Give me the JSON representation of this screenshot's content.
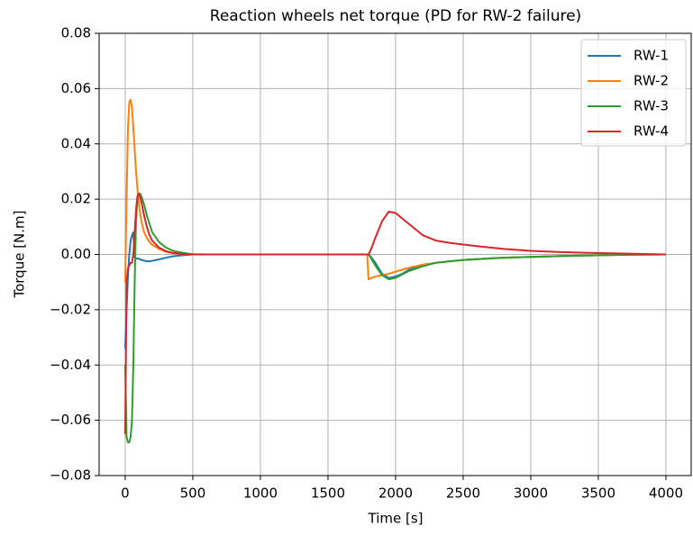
{
  "chart_data": {
    "type": "line",
    "title": "Reaction wheels net torque (PD for RW-2 failure)",
    "x_label": "Time [s]",
    "y_label": "Torque [N.m]",
    "x": [
      0,
      10,
      20,
      30,
      40,
      50,
      60,
      70,
      80,
      90,
      100,
      110,
      120,
      140,
      160,
      180,
      200,
      250,
      300,
      350,
      400,
      450,
      500,
      600,
      800,
      1000,
      1200,
      1400,
      1600,
      1790,
      1800,
      1820,
      1850,
      1900,
      1950,
      2000,
      2050,
      2100,
      2200,
      2300,
      2400,
      2500,
      2600,
      2800,
      3000,
      3200,
      3400,
      3600,
      3800,
      4000
    ],
    "series": [
      {
        "name": "RW-1",
        "color": "#1f77b4",
        "values": [
          -0.034,
          -0.02,
          -0.008,
          0,
          0.005,
          0.007,
          0.008,
          -0.001,
          -0.0015,
          -0.0015,
          -0.0015,
          -0.0018,
          -0.002,
          -0.0022,
          -0.0025,
          -0.0025,
          -0.0023,
          -0.0018,
          -0.0012,
          -0.0007,
          -0.0004,
          -0.0002,
          0,
          0,
          0,
          0,
          0,
          0,
          0,
          0,
          0,
          -0.001,
          -0.003,
          -0.007,
          -0.0085,
          -0.008,
          -0.007,
          -0.0055,
          -0.004,
          -0.003,
          -0.0025,
          -0.002,
          -0.0017,
          -0.0012,
          -0.0009,
          -0.0006,
          -0.0004,
          -0.0002,
          -0.0001,
          0
        ]
      },
      {
        "name": "RW-2",
        "color": "#ff7f0e",
        "values": [
          -0.01,
          0.02,
          0.045,
          0.055,
          0.056,
          0.053,
          0.046,
          0.038,
          0.03,
          0.024,
          0.019,
          0.015,
          0.012,
          0.008,
          0.006,
          0.0045,
          0.0035,
          0.002,
          0.001,
          0.0005,
          0.0002,
          0.0001,
          0,
          0,
          0,
          0,
          0,
          0,
          0,
          0,
          -0.009,
          -0.0085,
          -0.008,
          -0.0075,
          -0.007,
          -0.0062,
          -0.0055,
          -0.0048,
          -0.0037,
          -0.003,
          -0.0025,
          -0.002,
          -0.0017,
          -0.0012,
          -0.0009,
          -0.0006,
          -0.0004,
          -0.0002,
          -0.0001,
          0
        ]
      },
      {
        "name": "RW-3",
        "color": "#2ca02c",
        "values": [
          -0.04,
          -0.066,
          -0.068,
          -0.068,
          -0.066,
          -0.06,
          -0.04,
          -0.01,
          0.012,
          0.02,
          0.022,
          0.022,
          0.021,
          0.018,
          0.014,
          0.011,
          0.008,
          0.0045,
          0.0025,
          0.0014,
          0.0008,
          0.0004,
          0.0001,
          0,
          0,
          0,
          0,
          0,
          0,
          0,
          0,
          -0.0015,
          -0.004,
          -0.0075,
          -0.009,
          -0.0085,
          -0.0072,
          -0.006,
          -0.0043,
          -0.003,
          -0.0025,
          -0.002,
          -0.0017,
          -0.0012,
          -0.0009,
          -0.0006,
          -0.0004,
          -0.0002,
          -0.0001,
          0
        ]
      },
      {
        "name": "RW-4",
        "color": "#d62728",
        "values": [
          -0.065,
          -0.01,
          -0.005,
          -0.004,
          -0.003,
          -0.003,
          0,
          0.008,
          0.016,
          0.021,
          0.022,
          0.021,
          0.019,
          0.014,
          0.01,
          0.007,
          0.005,
          0.0025,
          0.0012,
          0.0006,
          0.0003,
          0.0001,
          0,
          0,
          0,
          0,
          0,
          0,
          0,
          0,
          0,
          0.002,
          0.006,
          0.012,
          0.0155,
          0.015,
          0.013,
          0.011,
          0.007,
          0.005,
          0.0042,
          0.0036,
          0.003,
          0.002,
          0.0013,
          0.0009,
          0.0006,
          0.0004,
          0.0002,
          0
        ]
      }
    ],
    "xlim": [
      -193,
      4187
    ],
    "xticks": [
      0,
      500,
      1000,
      1500,
      2000,
      2500,
      3000,
      3500,
      4000
    ],
    "ylim": [
      -0.08,
      0.08
    ],
    "yticks": [
      {
        "value": -0.08,
        "label": "−0.08"
      },
      {
        "value": -0.06,
        "label": "−0.06"
      },
      {
        "value": -0.04,
        "label": "−0.04"
      },
      {
        "value": -0.02,
        "label": "−0.02"
      },
      {
        "value": 0,
        "label": "0.00"
      },
      {
        "value": 0.02,
        "label": "0.02"
      },
      {
        "value": 0.04,
        "label": "0.04"
      },
      {
        "value": 0.06,
        "label": "0.06"
      },
      {
        "value": 0.08,
        "label": "0.08"
      }
    ],
    "grid": true,
    "legend": "upper right"
  }
}
